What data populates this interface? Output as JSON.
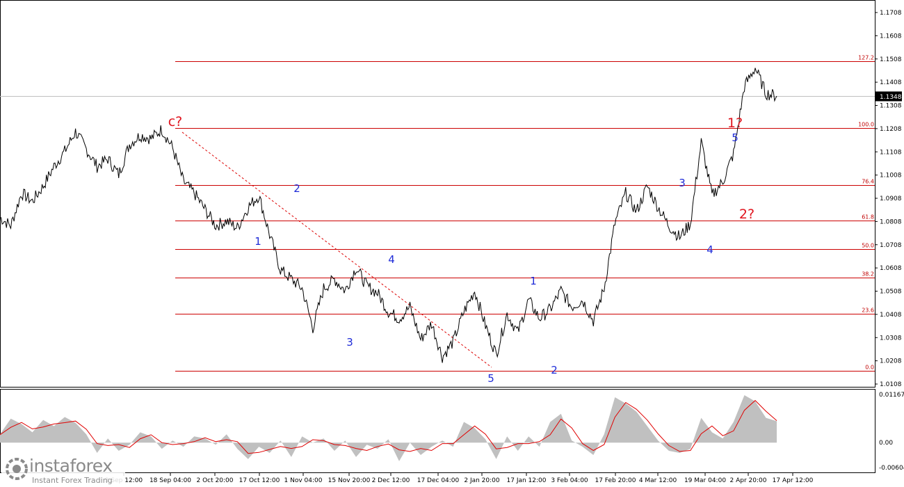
{
  "chart_data": [
    {
      "type": "line",
      "instrument_view": "price",
      "y_ticks": [
        "1.1708",
        "1.1608",
        "1.1508",
        "1.1408",
        "1.1308",
        "1.1208",
        "1.1108",
        "1.1008",
        "1.0908",
        "1.0808",
        "1.0708",
        "1.0608",
        "1.0508",
        "1.0408",
        "1.0308",
        "1.0208",
        "1.0108"
      ],
      "ylim": [
        1.0108,
        1.1708
      ],
      "x_ticks": [
        "3 Sep 12:00",
        "18 Sep 04:00",
        "2 Oct 20:00",
        "17 Oct 12:00",
        "1 Nov 04:00",
        "15 Nov 20:00",
        "2 Dec 12:00",
        "17 Dec 04:00",
        "2 Jan 20:00",
        "17 Jan 12:00",
        "3 Feb 04:00",
        "17 Feb 20:00",
        "4 Mar 12:00",
        "19 Mar 04:00",
        "2 Apr 20:00",
        "17 Apr 12:00"
      ],
      "current_price": "1.1348",
      "series": [
        {
          "values": [
            1.0825,
            1.079,
            1.093,
            1.0895,
            1.096,
            1.1045,
            1.111,
            1.1195,
            1.112,
            1.1045,
            1.1078,
            1.101,
            1.114,
            1.118,
            1.1165,
            1.1205,
            1.1125,
            1.098,
            1.093,
            1.086,
            1.079,
            1.081,
            1.078,
            1.087,
            1.092,
            1.075,
            1.06,
            1.056,
            1.052,
            1.035,
            1.052,
            1.056,
            1.051,
            1.061,
            1.053,
            1.05,
            1.042,
            1.039,
            1.044,
            1.03,
            1.037,
            1.0225,
            1.029,
            1.042,
            1.051,
            1.036,
            1.0235,
            1.041,
            1.033,
            1.047,
            1.039,
            1.043,
            1.051,
            1.044,
            1.047,
            1.038,
            1.052,
            1.08,
            1.093,
            1.085,
            1.096,
            1.087,
            1.079,
            1.074,
            1.08,
            1.115,
            1.092,
            1.098,
            1.11,
            1.139,
            1.147,
            1.136,
            1.1348
          ]
        }
      ],
      "fibonacci_levels": [
        {
          "label": "127.2",
          "price": 1.1498
        },
        {
          "label": "100.0",
          "price": 1.121
        },
        {
          "label": "76.4",
          "price": 1.0965
        },
        {
          "label": "61.8",
          "price": 1.0812
        },
        {
          "label": "50.0",
          "price": 1.0688
        },
        {
          "label": "38.2",
          "price": 1.0565
        },
        {
          "label": "23.6",
          "price": 1.0412
        },
        {
          "label": "0.0",
          "price": 1.0165
        }
      ],
      "wave_labels": [
        {
          "text": "c?",
          "style": "red"
        },
        {
          "text": "1",
          "style": "blue"
        },
        {
          "text": "2",
          "style": "blue"
        },
        {
          "text": "3",
          "style": "blue"
        },
        {
          "text": "4",
          "style": "blue"
        },
        {
          "text": "5",
          "style": "blue"
        },
        {
          "text": "1",
          "style": "blue"
        },
        {
          "text": "2",
          "style": "blue"
        },
        {
          "text": "3",
          "style": "blue"
        },
        {
          "text": "4",
          "style": "blue"
        },
        {
          "text": "5",
          "style": "blue"
        },
        {
          "text": "1?",
          "style": "red"
        },
        {
          "text": "2?",
          "style": "red"
        }
      ],
      "grid": false,
      "colors": {
        "price": "#000000",
        "fib": "#cc0000",
        "current_line": "#c0c0c0",
        "wave_blue": "#1e2bd8",
        "wave_red": "#e0141e"
      }
    },
    {
      "type": "area",
      "instrument_view": "oscillator",
      "y_ticks": [
        "0.01167",
        "0.00",
        "-0.00604"
      ],
      "ylim": [
        -0.00604,
        0.01167
      ],
      "series": [
        {
          "values": [
            0.002,
            0.0058,
            0.0045,
            0.0025,
            0.0055,
            0.004,
            0.0062,
            0.0048,
            0.002,
            -0.0025,
            0.001,
            -0.002,
            -0.0005,
            0.0025,
            0.0015,
            -0.0015,
            0.0005,
            -0.001,
            0.0015,
            0.001,
            -0.0005,
            0.002,
            -0.0015,
            -0.004,
            -0.001,
            -0.0025,
            0.0005,
            -0.0035,
            0.0015,
            0.0,
            0.001,
            -0.002,
            0.0005,
            -0.0035,
            -0.0005,
            -0.0015,
            0.0008,
            -0.0045,
            0.0,
            -0.003,
            -0.001,
            0.0005,
            -0.001,
            0.005,
            0.0035,
            0.0008,
            -0.004,
            0.0015,
            -0.002,
            0.0015,
            -0.001,
            0.005,
            0.007,
            0.0005,
            -0.001,
            -0.003,
            0.002,
            0.011,
            0.0095,
            0.0075,
            0.004,
            0.0005,
            -0.002,
            -0.0025,
            -0.0015,
            0.006,
            0.0025,
            0.001,
            0.005,
            0.0115,
            0.01,
            0.006,
            0.0052
          ]
        }
      ],
      "colors": {
        "histogram": "#c0c0c0",
        "signal": "#e00000"
      }
    }
  ],
  "branding": {
    "logo_name": "instaforex",
    "logo_tagline": "Instant Forex Trading"
  }
}
